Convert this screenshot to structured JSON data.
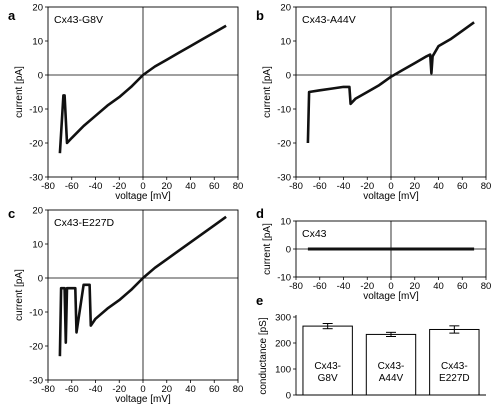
{
  "chart_data": [
    {
      "type": "line",
      "panel_letter": "a",
      "label": "Cx43-G8V",
      "xlabel": "voltage [mV]",
      "ylabel": "current [pA]",
      "xlim": [
        -80,
        80
      ],
      "ylim": [
        -30,
        20
      ],
      "xticks": [
        -80,
        -60,
        -40,
        -20,
        0,
        20,
        40,
        60,
        80
      ],
      "yticks": [
        -30,
        -20,
        -10,
        0,
        10,
        20
      ],
      "x": [
        -70,
        -67,
        -66,
        -64,
        -60,
        -50,
        -40,
        -30,
        -20,
        -10,
        0,
        10,
        20,
        30,
        40,
        50,
        60,
        70
      ],
      "y": [
        -23,
        -6,
        -6,
        -20,
        -18.5,
        -15,
        -12,
        -9,
        -6.5,
        -3.5,
        0,
        2.5,
        4.5,
        6.5,
        8.5,
        10.5,
        12.5,
        14.5
      ]
    },
    {
      "type": "line",
      "panel_letter": "b",
      "label": "Cx43-A44V",
      "xlabel": "voltage [mV]",
      "ylabel": "current [pA]",
      "xlim": [
        -80,
        80
      ],
      "ylim": [
        -30,
        20
      ],
      "xticks": [
        -80,
        -60,
        -40,
        -20,
        0,
        20,
        40,
        60,
        80
      ],
      "yticks": [
        -30,
        -20,
        -10,
        0,
        10,
        20
      ],
      "x": [
        -70,
        -69,
        -60,
        -50,
        -40,
        -35,
        -34,
        -30,
        -20,
        -10,
        0,
        10,
        20,
        30,
        33,
        34,
        35,
        40,
        50,
        60,
        70
      ],
      "y": [
        -20,
        -5,
        -4.5,
        -4,
        -3.5,
        -3.5,
        -8.5,
        -7,
        -5,
        -3,
        -0.5,
        1.5,
        3.5,
        5.5,
        6,
        0.5,
        5.5,
        8.5,
        10.5,
        13,
        15.5
      ]
    },
    {
      "type": "line",
      "panel_letter": "c",
      "label": "Cx43-E227D",
      "xlabel": "voltage [mV]",
      "ylabel": "current [pA]",
      "xlim": [
        -80,
        80
      ],
      "ylim": [
        -30,
        20
      ],
      "xticks": [
        -80,
        -60,
        -40,
        -20,
        0,
        20,
        40,
        60,
        80
      ],
      "yticks": [
        -30,
        -20,
        -10,
        0,
        10,
        20
      ],
      "x": [
        -70,
        -69,
        -68,
        -66,
        -65,
        -64,
        -60,
        -57,
        -56,
        -50,
        -45,
        -44,
        -40,
        -30,
        -20,
        -10,
        0,
        10,
        20,
        30,
        40,
        50,
        60,
        70
      ],
      "y": [
        -23,
        -3,
        -3,
        -3,
        -19,
        -3,
        -3,
        -3,
        -16,
        -2,
        -2,
        -14,
        -12,
        -9,
        -6.5,
        -3.5,
        0,
        3,
        5.5,
        8,
        10.5,
        13,
        15.5,
        18
      ]
    },
    {
      "type": "line",
      "panel_letter": "d",
      "label": "Cx43",
      "xlabel": "voltage [mV]",
      "ylabel": "current [pA]",
      "xlim": [
        -80,
        80
      ],
      "ylim": [
        -10,
        10
      ],
      "xticks": [
        -80,
        -60,
        -40,
        -20,
        0,
        20,
        40,
        60,
        80
      ],
      "yticks": [
        -10,
        0,
        10
      ],
      "x": [
        -70,
        70
      ],
      "y": [
        0,
        0
      ]
    },
    {
      "type": "bar",
      "panel_letter": "e",
      "ylabel": "conductance [pS]",
      "ylim": [
        0,
        300
      ],
      "yticks": [
        0,
        100,
        200,
        300
      ],
      "categories": [
        [
          "Cx43-",
          "G8V"
        ],
        [
          "Cx43-",
          "A44V"
        ],
        [
          "Cx43-",
          "E227D"
        ]
      ],
      "values": [
        265,
        233,
        252
      ],
      "errors": [
        10,
        8,
        14
      ]
    }
  ]
}
